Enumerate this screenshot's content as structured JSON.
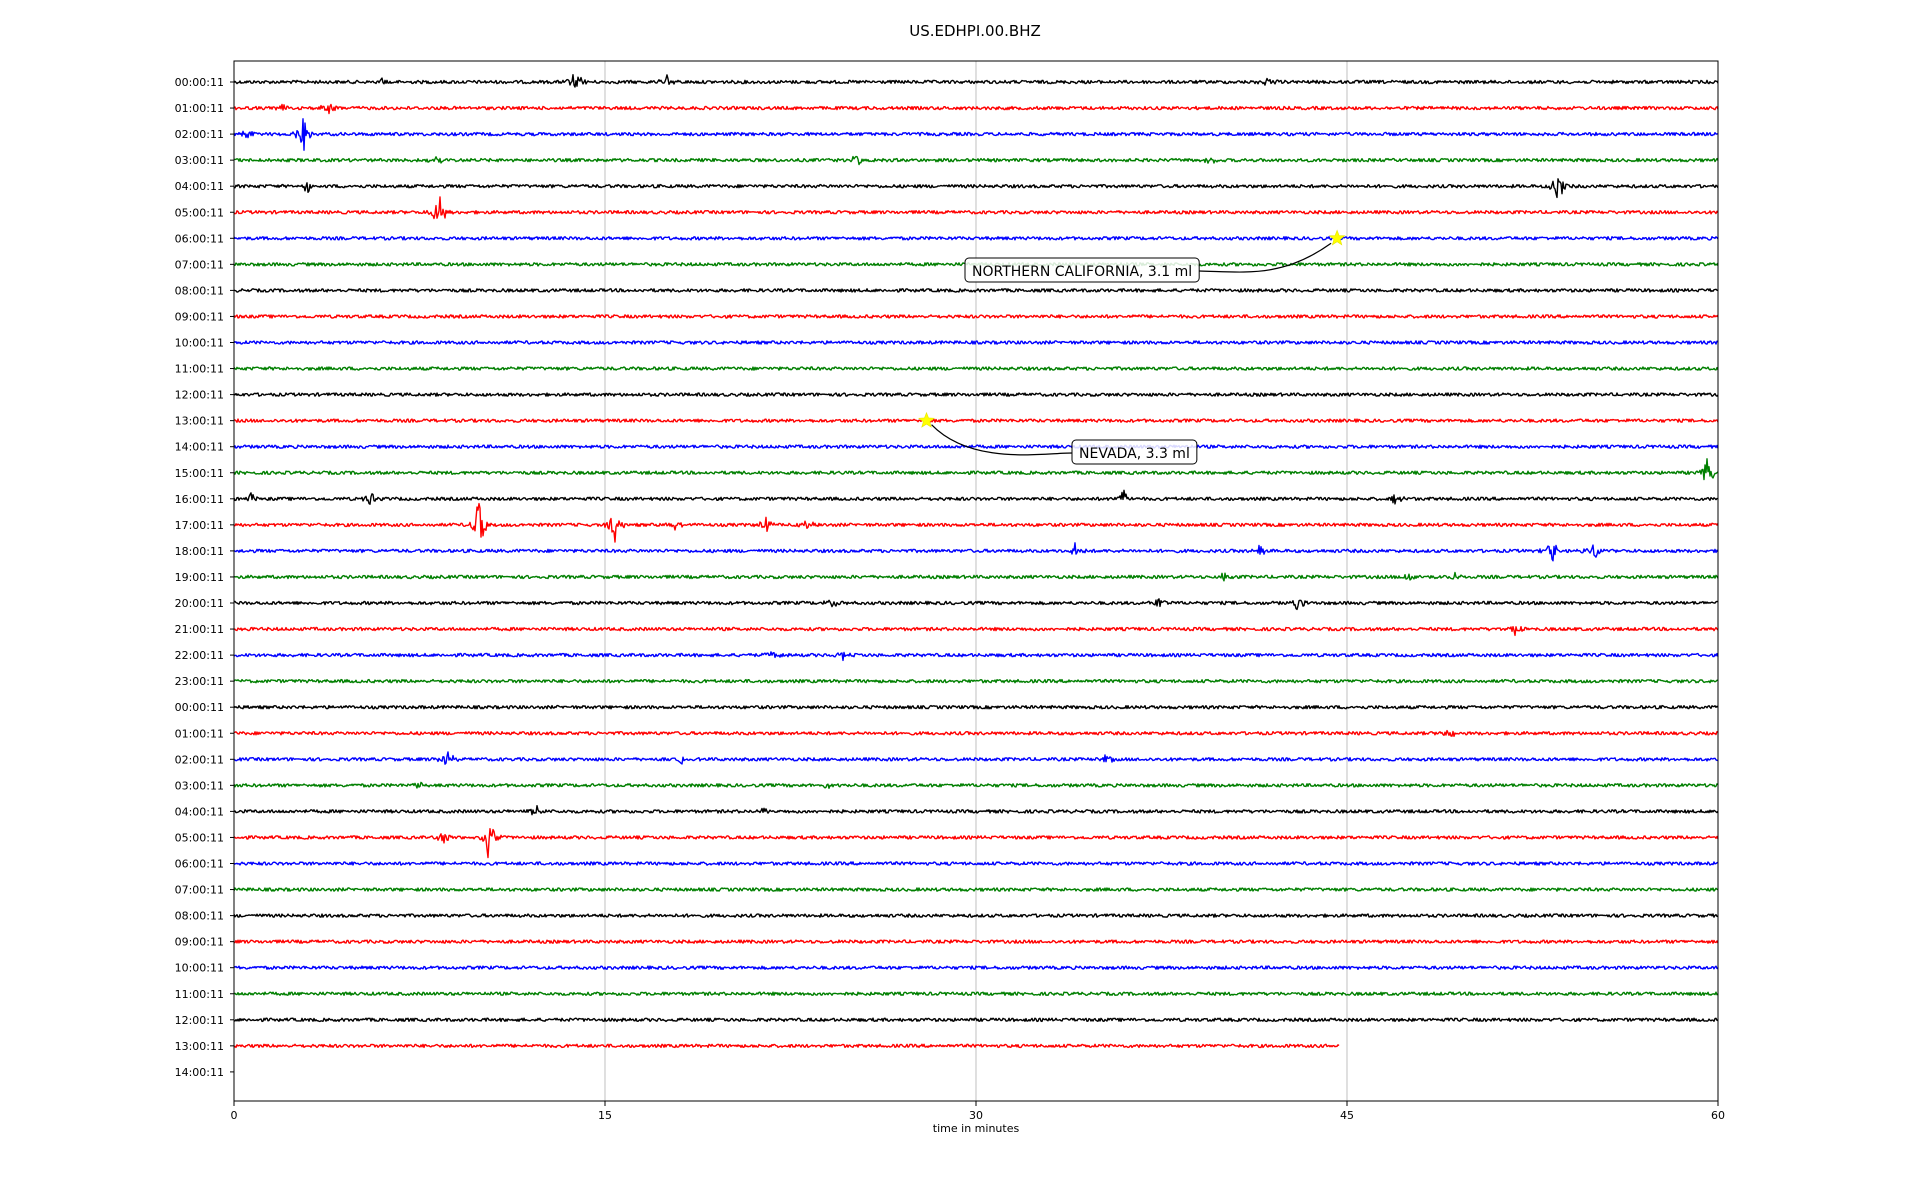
{
  "chart_data": {
    "type": "line",
    "title": "US.EDHPI.00.BHZ",
    "xlabel": "time in minutes",
    "xlim": [
      0,
      60
    ],
    "xticks": [
      0,
      15,
      30,
      45,
      60
    ],
    "grid": "vertical",
    "series_colors": [
      "#000000",
      "#ff0000",
      "#0000ff",
      "#007f00"
    ],
    "row_labels": [
      "00:00:11",
      "01:00:11",
      "02:00:11",
      "03:00:11",
      "04:00:11",
      "05:00:11",
      "06:00:11",
      "07:00:11",
      "08:00:11",
      "09:00:11",
      "10:00:11",
      "11:00:11",
      "12:00:11",
      "13:00:11",
      "14:00:11",
      "15:00:11",
      "16:00:11",
      "17:00:11",
      "18:00:11",
      "19:00:11",
      "20:00:11",
      "21:00:11",
      "22:00:11",
      "23:00:11",
      "00:00:11",
      "01:00:11",
      "02:00:11",
      "03:00:11",
      "04:00:11",
      "05:00:11",
      "06:00:11",
      "07:00:11",
      "08:00:11",
      "09:00:11",
      "10:00:11",
      "11:00:11",
      "12:00:11",
      "13:00:11",
      "14:00:11"
    ],
    "last_trace_end_minute": 44.7,
    "events": [
      {
        "row": 6,
        "minute": 44.6,
        "label": "NORTHERN CALIFORNIA, 3.1 ml"
      },
      {
        "row": 13,
        "minute": 28.0,
        "label": "NEVADA, 3.3 ml"
      }
    ],
    "bursts": [
      {
        "row": 0,
        "minute": 13.8,
        "amp": 14
      },
      {
        "row": 0,
        "minute": 17.5,
        "amp": 8
      },
      {
        "row": 0,
        "minute": 41.8,
        "amp": 6
      },
      {
        "row": 0,
        "minute": 6.0,
        "amp": 4
      },
      {
        "row": 1,
        "minute": 3.8,
        "amp": 10
      },
      {
        "row": 1,
        "minute": 2.0,
        "amp": 4
      },
      {
        "row": 2,
        "minute": 2.8,
        "amp": 18
      },
      {
        "row": 2,
        "minute": 0.5,
        "amp": 8
      },
      {
        "row": 3,
        "minute": 8.2,
        "amp": 6
      },
      {
        "row": 3,
        "minute": 25.2,
        "amp": 6
      },
      {
        "row": 3,
        "minute": 39.5,
        "amp": 4
      },
      {
        "row": 4,
        "minute": 53.5,
        "amp": 22
      },
      {
        "row": 4,
        "minute": 3.0,
        "amp": 8
      },
      {
        "row": 5,
        "minute": 8.3,
        "amp": 22
      },
      {
        "row": 15,
        "minute": 59.6,
        "amp": 20
      },
      {
        "row": 16,
        "minute": 0.7,
        "amp": 8
      },
      {
        "row": 16,
        "minute": 5.5,
        "amp": 8
      },
      {
        "row": 16,
        "minute": 36.0,
        "amp": 10
      },
      {
        "row": 16,
        "minute": 47.0,
        "amp": 8
      },
      {
        "row": 17,
        "minute": 9.9,
        "amp": 30
      },
      {
        "row": 17,
        "minute": 15.4,
        "amp": 18
      },
      {
        "row": 17,
        "minute": 17.8,
        "amp": 8
      },
      {
        "row": 17,
        "minute": 21.5,
        "amp": 10
      },
      {
        "row": 17,
        "minute": 23.2,
        "amp": 6
      },
      {
        "row": 18,
        "minute": 34.0,
        "amp": 8
      },
      {
        "row": 18,
        "minute": 41.5,
        "amp": 8
      },
      {
        "row": 18,
        "minute": 53.3,
        "amp": 12
      },
      {
        "row": 18,
        "minute": 55.0,
        "amp": 10
      },
      {
        "row": 19,
        "minute": 40.0,
        "amp": 6
      },
      {
        "row": 19,
        "minute": 47.5,
        "amp": 6
      },
      {
        "row": 19,
        "minute": 49.4,
        "amp": 6
      },
      {
        "row": 20,
        "minute": 37.4,
        "amp": 8
      },
      {
        "row": 20,
        "minute": 43.0,
        "amp": 8
      },
      {
        "row": 20,
        "minute": 24.2,
        "amp": 5
      },
      {
        "row": 21,
        "minute": 51.8,
        "amp": 6
      },
      {
        "row": 22,
        "minute": 21.8,
        "amp": 6
      },
      {
        "row": 22,
        "minute": 24.6,
        "amp": 6
      },
      {
        "row": 25,
        "minute": 49.2,
        "amp": 8
      },
      {
        "row": 26,
        "minute": 8.6,
        "amp": 12
      },
      {
        "row": 26,
        "minute": 18.0,
        "amp": 8
      },
      {
        "row": 26,
        "minute": 35.3,
        "amp": 6
      },
      {
        "row": 27,
        "minute": 7.5,
        "amp": 4
      },
      {
        "row": 27,
        "minute": 24.0,
        "amp": 4
      },
      {
        "row": 28,
        "minute": 12.2,
        "amp": 6
      },
      {
        "row": 28,
        "minute": 21.5,
        "amp": 4
      },
      {
        "row": 29,
        "minute": 10.3,
        "amp": 24
      },
      {
        "row": 29,
        "minute": 8.5,
        "amp": 8
      }
    ]
  }
}
